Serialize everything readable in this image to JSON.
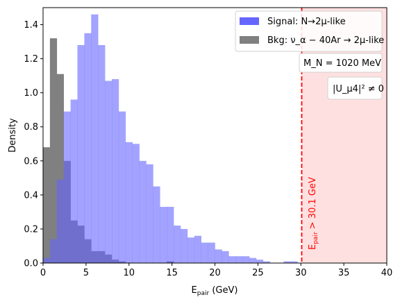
{
  "chart_data": {
    "type": "bar",
    "xlabel": "E",
    "xlabel_sub": "pair",
    "xlabel_unit": " (GeV)",
    "ylabel": "Density",
    "xlim": [
      0,
      40
    ],
    "ylim": [
      0,
      1.5
    ],
    "xticks": [
      0,
      5,
      10,
      15,
      20,
      25,
      30,
      35,
      40
    ],
    "yticks": [
      0.0,
      0.2,
      0.4,
      0.6,
      0.8,
      1.0,
      1.2,
      1.4
    ],
    "grid": false,
    "legend_placement": "top-right",
    "signal": {
      "name": "Signal: N→2μ-like",
      "color": "#6666ff",
      "bin_width": 0.8,
      "bin_start": 0,
      "values": [
        0.03,
        0.14,
        0.49,
        0.89,
        0.96,
        1.28,
        1.35,
        1.46,
        1.28,
        1.07,
        1.08,
        0.89,
        0.71,
        0.7,
        0.6,
        0.58,
        0.45,
        0.33,
        0.33,
        0.22,
        0.2,
        0.15,
        0.16,
        0.12,
        0.12,
        0.08,
        0.07,
        0.04,
        0.04,
        0.04,
        0.03,
        0.02,
        0.01,
        0.0,
        0.0,
        0.01,
        0.01,
        0.0,
        0.0,
        0.0,
        0.0,
        0.0,
        0.0,
        0.0,
        0.0,
        0.0,
        0.0,
        0.0,
        0.0,
        0.0,
        0.0,
        0.0,
        0.0,
        0.0,
        0.0,
        0.0,
        0.0,
        0.0,
        0.0,
        0.0,
        0.0,
        0.0,
        0.0,
        0.0,
        0.0,
        0.0,
        0.0,
        0.0,
        0.0,
        0.0,
        0.0,
        0.0,
        0.0,
        0.0,
        0.0,
        0.0,
        0.0,
        0.0,
        0.0,
        0.0
      ]
    },
    "background": {
      "name": "Bkg: ν_α − 40Ar → 2μ-like",
      "color": "#808080",
      "bin_width": 0.8,
      "bin_start": 0,
      "values": [
        0.68,
        1.32,
        1.11,
        0.6,
        0.25,
        0.22,
        0.14,
        0.07,
        0.07,
        0.05,
        0.02,
        0.01,
        0.0,
        0.0,
        0.0,
        0.0,
        0.0,
        0.0,
        0.01,
        0.0
      ]
    },
    "cut": {
      "value": 30.1,
      "label": "E",
      "label_sub": "pair",
      "label_rest": " > 30.1 GeV",
      "line_color": "#ff0000",
      "region_color": "#ffe0e0"
    },
    "annotations": {
      "mass": "M_N = 1020 MeV",
      "mixing": "|U_μ4|² ≠ 0"
    }
  }
}
